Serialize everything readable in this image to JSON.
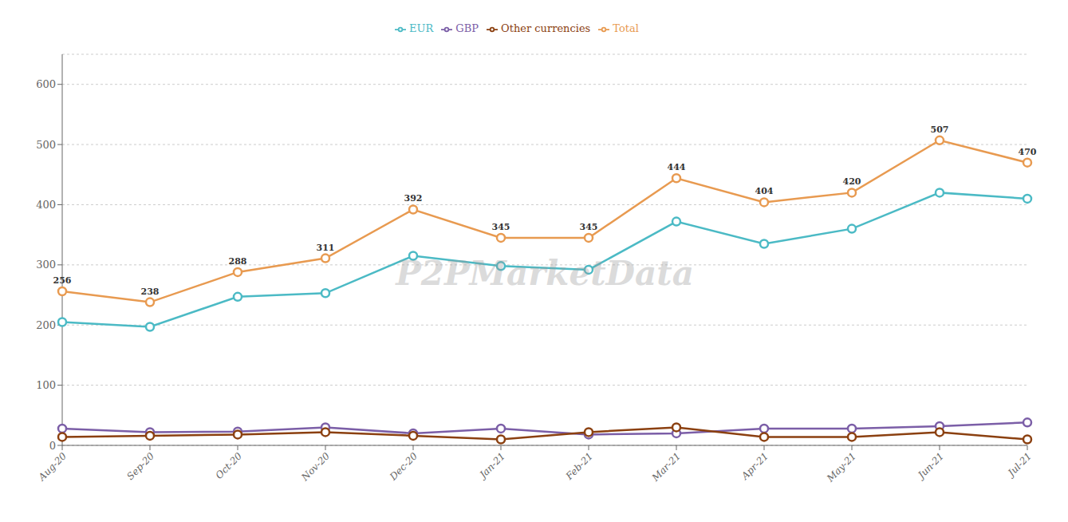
{
  "chart_data": {
    "type": "line",
    "categories": [
      "Aug-20",
      "Sep-20",
      "Oct-20",
      "Nov-20",
      "Dec-20",
      "Jan-21",
      "Feb-21",
      "Mar-21",
      "Apr-21",
      "May-21",
      "Jun-21",
      "Jul-21"
    ],
    "series": [
      {
        "name": "Total",
        "color": "#E89A50",
        "values": [
          256,
          238,
          288,
          311,
          392,
          345,
          345,
          444,
          404,
          420,
          507,
          470
        ],
        "marker": "circle",
        "data_labels": true
      },
      {
        "name": "EUR",
        "color": "#4BBAC5",
        "values": [
          205,
          197,
          247,
          253,
          315,
          298,
          292,
          372,
          335,
          360,
          420,
          410
        ],
        "marker": "circle"
      },
      {
        "name": "GBP",
        "color": "#7B5EA7",
        "values": [
          28,
          22,
          23,
          30,
          20,
          28,
          18,
          20,
          28,
          28,
          32,
          38
        ],
        "marker": "circle"
      },
      {
        "name": "Other currencies",
        "color": "#8B4010",
        "values": [
          14,
          16,
          18,
          22,
          16,
          10,
          22,
          30,
          14,
          14,
          22,
          10
        ],
        "marker": "circle"
      }
    ],
    "ylim": [
      0,
      650
    ],
    "yticks": [
      0,
      100,
      200,
      300,
      400,
      500,
      600
    ],
    "grid": true,
    "legend": "top",
    "annotations": [
      "P2PMarketData"
    ]
  }
}
